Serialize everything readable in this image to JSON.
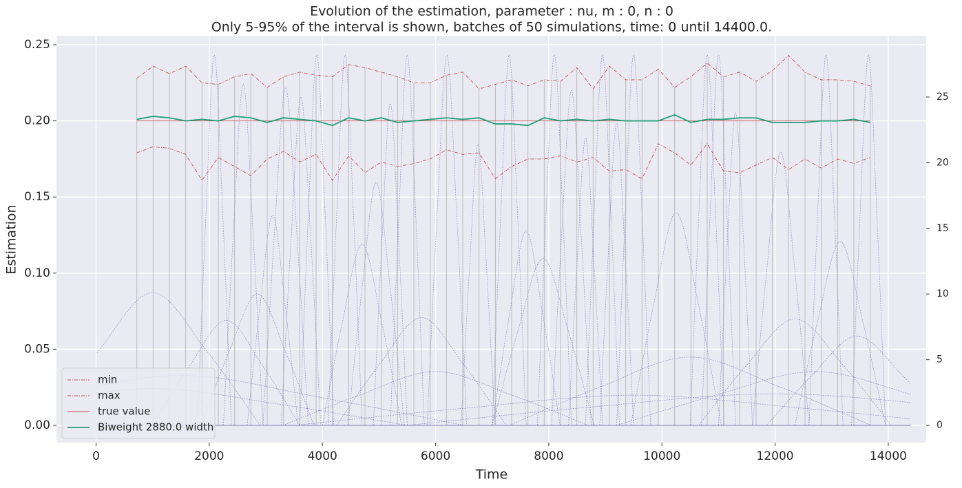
{
  "chart_data": {
    "type": "line",
    "title": "Evolution of the estimation, parameter : nu, m : 0, n : 0",
    "subtitle": "Only 5-95% of the interval is shown, batches of 50 simulations, time: 0 until 14400.0.",
    "x_label": "Time",
    "y_label": "Estimation",
    "xlim": [
      -700,
      14670
    ],
    "xticks": [
      0,
      2000,
      4000,
      6000,
      8000,
      10000,
      12000,
      14000
    ],
    "ylim": [
      -0.0113,
      0.2559
    ],
    "yticks": [
      {
        "value": 0,
        "label": "0.00"
      },
      {
        "value": 0.05,
        "label": "0.05"
      },
      {
        "value": 0.1,
        "label": "0.10"
      },
      {
        "value": 0.15,
        "label": "0.15"
      },
      {
        "value": 0.2,
        "label": "0.20"
      },
      {
        "value": 0.25,
        "label": "0.25"
      }
    ],
    "y2lim": [
      -1.31,
      29.66
    ],
    "y2ticks": [
      0,
      5,
      10,
      15,
      20,
      25
    ],
    "grid": true,
    "legend": "lower left",
    "series": [
      {
        "name": "min",
        "color": "#c44e52",
        "linestyle": "dashdot",
        "x": [
          720,
          1008,
          1296,
          1584,
          1872,
          2160,
          2448,
          2736,
          3024,
          3312,
          3600,
          3888,
          4176,
          4464,
          4752,
          5040,
          5328,
          5616,
          5904,
          6192,
          6480,
          6768,
          7056,
          7344,
          7632,
          7920,
          8208,
          8496,
          8784,
          9072,
          9360,
          9648,
          9936,
          10224,
          10512,
          10800,
          11088,
          11376,
          11664,
          11952,
          12240,
          12528,
          12816,
          13104,
          13392,
          13680
        ],
        "values": [
          0.179,
          0.183,
          0.182,
          0.178,
          0.161,
          0.176,
          0.17,
          0.164,
          0.175,
          0.18,
          0.173,
          0.178,
          0.161,
          0.177,
          0.166,
          0.173,
          0.17,
          0.172,
          0.175,
          0.181,
          0.178,
          0.179,
          0.162,
          0.17,
          0.175,
          0.175,
          0.177,
          0.173,
          0.176,
          0.167,
          0.168,
          0.162,
          0.185,
          0.179,
          0.171,
          0.185,
          0.167,
          0.166,
          0.171,
          0.176,
          0.168,
          0.175,
          0.169,
          0.175,
          0.172,
          0.176
        ]
      },
      {
        "name": "max",
        "color": "#c44e52",
        "linestyle": "dashdot",
        "x": [
          720,
          1008,
          1296,
          1584,
          1872,
          2160,
          2448,
          2736,
          3024,
          3312,
          3600,
          3888,
          4176,
          4464,
          4752,
          5040,
          5328,
          5616,
          5904,
          6192,
          6480,
          6768,
          7056,
          7344,
          7632,
          7920,
          8208,
          8496,
          8784,
          9072,
          9360,
          9648,
          9936,
          10224,
          10512,
          10800,
          11088,
          11376,
          11664,
          11952,
          12240,
          12528,
          12816,
          13104,
          13392,
          13680
        ],
        "values": [
          0.228,
          0.236,
          0.231,
          0.236,
          0.225,
          0.224,
          0.229,
          0.231,
          0.222,
          0.229,
          0.232,
          0.23,
          0.229,
          0.237,
          0.235,
          0.232,
          0.229,
          0.225,
          0.225,
          0.23,
          0.232,
          0.221,
          0.224,
          0.227,
          0.223,
          0.227,
          0.226,
          0.235,
          0.221,
          0.236,
          0.227,
          0.227,
          0.234,
          0.222,
          0.229,
          0.238,
          0.229,
          0.232,
          0.226,
          0.233,
          0.243,
          0.232,
          0.227,
          0.227,
          0.226,
          0.223
        ]
      },
      {
        "name": "true value",
        "color": "#c44e52",
        "linestyle": "solid",
        "x": [
          720,
          13680
        ],
        "values": [
          0.2,
          0.2
        ]
      },
      {
        "name": "Biweight 2880.0 width",
        "color": "#1f9e78",
        "linestyle": "bold",
        "x": [
          720,
          1008,
          1296,
          1584,
          1872,
          2160,
          2448,
          2736,
          3024,
          3312,
          3600,
          3888,
          4176,
          4464,
          4752,
          5040,
          5328,
          5616,
          5904,
          6192,
          6480,
          6768,
          7056,
          7344,
          7632,
          7920,
          8208,
          8496,
          8784,
          9072,
          9360,
          9648,
          9936,
          10224,
          10512,
          10800,
          11088,
          11376,
          11664,
          11952,
          12240,
          12528,
          12816,
          13104,
          13392,
          13680
        ],
        "values": [
          0.201,
          0.203,
          0.202,
          0.2,
          0.201,
          0.2,
          0.203,
          0.202,
          0.199,
          0.202,
          0.201,
          0.2,
          0.197,
          0.202,
          0.2,
          0.202,
          0.199,
          0.2,
          0.201,
          0.202,
          0.201,
          0.202,
          0.198,
          0.198,
          0.197,
          0.202,
          0.2,
          0.201,
          0.2,
          0.201,
          0.2,
          0.2,
          0.2,
          0.204,
          0.199,
          0.201,
          0.201,
          0.202,
          0.202,
          0.199,
          0.199,
          0.199,
          0.2,
          0.2,
          0.201,
          0.199
        ]
      },
      {
        "color": "#7a6db5",
        "axis": "y2",
        "linestyle": "solid",
        "x": [
          0,
          14400
        ],
        "values": [
          0,
          0
        ]
      },
      {
        "color": "#7a6db5",
        "axis": "y2",
        "linestyle": "dashed",
        "x": [
          -900,
          50,
          1000,
          1950,
          2900
        ],
        "values": [
          0,
          5.7,
          10.1,
          5.7,
          0
        ]
      },
      {
        "color": "#7a6db5",
        "axis": "y2",
        "linestyle": "dashed",
        "x": [
          1000,
          1650,
          2300,
          2950,
          3600
        ],
        "values": [
          0,
          4.5,
          8,
          4.5,
          0
        ]
      },
      {
        "color": "#7a6db5",
        "axis": "y2",
        "linestyle": "dashed",
        "x": [
          1850,
          2350,
          2850,
          3350,
          3850
        ],
        "values": [
          0,
          5.6,
          10,
          5.6,
          0
        ]
      },
      {
        "color": "#7a6db5",
        "axis": "y2",
        "linestyle": "dashed",
        "x": [
          2670,
          2895,
          3120,
          3345,
          3570
        ],
        "values": [
          0,
          9,
          16,
          9,
          0
        ]
      },
      {
        "color": "#7a6db5",
        "axis": "y2",
        "linestyle": "dashed",
        "x": [
          2950,
          3150,
          3350,
          3550,
          3750
        ],
        "values": [
          0,
          14.5,
          25.7,
          14.5,
          0
        ]
      },
      {
        "color": "#7a6db5",
        "axis": "y2",
        "linestyle": "dashed",
        "x": [
          3270,
          3445,
          3620,
          3795,
          3970
        ],
        "values": [
          0,
          14.1,
          25,
          14.1,
          0
        ]
      },
      {
        "color": "#7a6db5",
        "axis": "y2",
        "linestyle": "dashed",
        "x": [
          1790,
          1940,
          2090,
          2240,
          2390
        ],
        "values": [
          0,
          15.9,
          28.2,
          15.9,
          0
        ]
      },
      {
        "color": "#7a6db5",
        "axis": "y2",
        "linestyle": "dashed",
        "x": [
          2250,
          2425,
          2600,
          2775,
          2950
        ],
        "values": [
          0,
          14.6,
          26,
          14.6,
          0
        ]
      },
      {
        "color": "#7a6db5",
        "axis": "y2",
        "linestyle": "dashed",
        "x": [
          3600,
          3750,
          3900,
          4050,
          4200
        ],
        "values": [
          0,
          15.9,
          28.2,
          15.9,
          0
        ]
      },
      {
        "color": "#7a6db5",
        "axis": "y2",
        "linestyle": "dashed",
        "x": [
          4100,
          4250,
          4400,
          4550,
          4700
        ],
        "values": [
          0,
          15.9,
          28.2,
          15.9,
          0
        ]
      },
      {
        "color": "#7a6db5",
        "axis": "y2",
        "linestyle": "dashed",
        "x": [
          4000,
          4350,
          4700,
          5050,
          5400
        ],
        "values": [
          0,
          7.8,
          13.8,
          7.8,
          0
        ]
      },
      {
        "color": "#7a6db5",
        "axis": "y2",
        "linestyle": "dashed",
        "x": [
          4450,
          4700,
          4950,
          5200,
          5450
        ],
        "values": [
          0,
          10.4,
          18.5,
          10.4,
          0
        ]
      },
      {
        "color": "#7a6db5",
        "axis": "y2",
        "linestyle": "dashed",
        "x": [
          4900,
          5050,
          5200,
          5350,
          5500
        ],
        "values": [
          0,
          13.8,
          24.5,
          13.8,
          0
        ]
      },
      {
        "color": "#7a6db5",
        "axis": "y2",
        "linestyle": "dashed",
        "x": [
          5200,
          5350,
          5500,
          5650,
          5800
        ],
        "values": [
          0,
          15.9,
          28.2,
          15.9,
          0
        ]
      },
      {
        "color": "#7a6db5",
        "axis": "y2",
        "linestyle": "dashed",
        "x": [
          4250,
          5000,
          5750,
          6500,
          7250
        ],
        "values": [
          0,
          4.6,
          8.2,
          4.6,
          0
        ]
      },
      {
        "color": "#7a6db5",
        "axis": "y2",
        "linestyle": "dashed",
        "x": [
          5850,
          6025,
          6200,
          6375,
          6550
        ],
        "values": [
          0,
          15.9,
          28.2,
          15.9,
          0
        ]
      },
      {
        "color": "#7a6db5",
        "axis": "y2",
        "linestyle": "dashed",
        "x": [
          3300,
          4650,
          6000,
          7350,
          8700
        ],
        "values": [
          0,
          2.3,
          4.1,
          2.3,
          0
        ]
      },
      {
        "color": "#7a6db5",
        "axis": "y2",
        "linestyle": "dashed",
        "x": [
          6450,
          6600,
          6750,
          6900,
          7050
        ],
        "values": [
          0,
          12,
          21.4,
          12,
          0
        ]
      },
      {
        "color": "#7a6db5",
        "axis": "y2",
        "linestyle": "dashed",
        "x": [
          7000,
          7150,
          7300,
          7450,
          7600
        ],
        "values": [
          0,
          15.9,
          28.2,
          15.9,
          0
        ]
      },
      {
        "color": "#7a6db5",
        "axis": "y2",
        "linestyle": "dashed",
        "x": [
          7000,
          7300,
          7600,
          7900,
          8200
        ],
        "values": [
          0,
          8.3,
          14.8,
          8.3,
          0
        ]
      },
      {
        "color": "#7a6db5",
        "axis": "y2",
        "linestyle": "dashed",
        "x": [
          7000,
          7450,
          7900,
          8350,
          8800
        ],
        "values": [
          0,
          7.1,
          12.7,
          7.1,
          0
        ]
      },
      {
        "color": "#7a6db5",
        "axis": "y2",
        "linestyle": "dashed",
        "x": [
          7800,
          7950,
          8100,
          8250,
          8400
        ],
        "values": [
          0,
          15.9,
          28.2,
          15.9,
          0
        ]
      },
      {
        "color": "#7a6db5",
        "axis": "y2",
        "linestyle": "dashed",
        "x": [
          8050,
          8225,
          8400,
          8575,
          8750
        ],
        "values": [
          0,
          14.3,
          25.5,
          14.3,
          0
        ]
      },
      {
        "color": "#7a6db5",
        "axis": "y2",
        "linestyle": "dashed",
        "x": [
          8350,
          8500,
          8650,
          8800,
          8950
        ],
        "values": [
          0,
          12.3,
          21.9,
          12.3,
          0
        ]
      },
      {
        "color": "#7a6db5",
        "axis": "y2",
        "linestyle": "dashed",
        "x": [
          8650,
          8800,
          8950,
          9100,
          9250
        ],
        "values": [
          0,
          15.9,
          28.2,
          15.9,
          0
        ]
      },
      {
        "color": "#7a6db5",
        "axis": "y2",
        "linestyle": "dashed",
        "x": [
          8900,
          9050,
          9200,
          9350,
          9500
        ],
        "values": [
          0,
          12.9,
          23,
          12.9,
          0
        ]
      },
      {
        "color": "#7a6db5",
        "axis": "y2",
        "linestyle": "dashed",
        "x": [
          9200,
          9350,
          9500,
          9650,
          9800
        ],
        "values": [
          0,
          15.9,
          28.2,
          15.9,
          0
        ]
      },
      {
        "color": "#7a6db5",
        "axis": "y2",
        "linestyle": "dashed",
        "x": [
          9450,
          9850,
          10250,
          10650,
          11050
        ],
        "values": [
          0,
          9.1,
          16.2,
          9.1,
          0
        ]
      },
      {
        "color": "#7a6db5",
        "axis": "y2",
        "linestyle": "dashed",
        "x": [
          7300,
          8900,
          10500,
          12100,
          13700
        ],
        "values": [
          0,
          2.9,
          5.2,
          2.9,
          0
        ]
      },
      {
        "color": "#7a6db5",
        "axis": "y2",
        "linestyle": "dashed",
        "x": [
          10500,
          10650,
          10800,
          10950,
          11100
        ],
        "values": [
          0,
          15.9,
          28.2,
          15.9,
          0
        ]
      },
      {
        "color": "#7a6db5",
        "axis": "y2",
        "linestyle": "dashed",
        "x": [
          10700,
          10850,
          11000,
          11150,
          11300
        ],
        "values": [
          0,
          15.9,
          28.2,
          15.9,
          0
        ]
      },
      {
        "color": "#7a6db5",
        "axis": "y2",
        "linestyle": "dashed",
        "x": [
          11000,
          11150,
          11300,
          11450,
          11600
        ],
        "values": [
          0,
          13.4,
          23.8,
          13.4,
          0
        ]
      },
      {
        "color": "#7a6db5",
        "axis": "y2",
        "linestyle": "dashed",
        "x": [
          11600,
          11850,
          12100,
          12350,
          12600
        ],
        "values": [
          0,
          11.7,
          20.8,
          11.7,
          0
        ]
      },
      {
        "color": "#7a6db5",
        "axis": "y2",
        "linestyle": "dashed",
        "x": [
          10650,
          11500,
          12350,
          13200,
          14050
        ],
        "values": [
          0,
          4.6,
          8.1,
          4.6,
          0
        ]
      },
      {
        "color": "#7a6db5",
        "axis": "y2",
        "linestyle": "dashed",
        "x": [
          12600,
          12750,
          12900,
          13050,
          13200
        ],
        "values": [
          0,
          15.9,
          28.2,
          15.9,
          0
        ]
      },
      {
        "color": "#7a6db5",
        "axis": "y2",
        "linestyle": "dashed",
        "x": [
          12350,
          12750,
          13150,
          13550,
          13950
        ],
        "values": [
          0,
          7.9,
          14,
          7.9,
          0
        ]
      },
      {
        "color": "#7a6db5",
        "axis": "y2",
        "linestyle": "dashed",
        "x": [
          11850,
          12650,
          13450,
          14250,
          15050
        ],
        "values": [
          0,
          3.8,
          6.8,
          3.8,
          0
        ]
      },
      {
        "color": "#7a6db5",
        "axis": "y2",
        "linestyle": "dashed",
        "x": [
          13350,
          13500,
          13650,
          13800,
          13950
        ],
        "values": [
          0,
          15.9,
          28.2,
          15.9,
          0
        ]
      },
      {
        "color": "#7a6db5",
        "axis": "y2",
        "linestyle": "dashed",
        "x": [
          9200,
          10950,
          12700,
          14450,
          16200
        ],
        "values": [
          0,
          2.3,
          4.1,
          2.3,
          0
        ]
      },
      {
        "color": "#7a6db5",
        "axis": "y2",
        "linestyle": "dashed",
        "x": [
          -3500,
          -1000,
          1500,
          4000,
          6500
        ],
        "values": [
          0,
          2.1,
          3.8,
          2.1,
          0
        ]
      },
      {
        "color": "#7a6db5",
        "axis": "y2",
        "linestyle": "dashed",
        "x": [
          3500,
          6500,
          9500,
          12500,
          15500
        ],
        "values": [
          0,
          1.3,
          2.3,
          1.3,
          0
        ]
      },
      {
        "color": "#7a6db5",
        "axis": "y2",
        "linestyle": "dashed",
        "x": [
          5500,
          8750,
          12000,
          15250,
          18500
        ],
        "values": [
          0,
          1.4,
          2.4,
          1.4,
          0
        ]
      },
      {
        "color": "#7a6db5",
        "axis": "y2",
        "linestyle": "dashed",
        "x": [
          -3500,
          -1250,
          1000,
          3250,
          5500
        ],
        "values": [
          0,
          1.6,
          2.8,
          1.6,
          0
        ]
      }
    ]
  }
}
